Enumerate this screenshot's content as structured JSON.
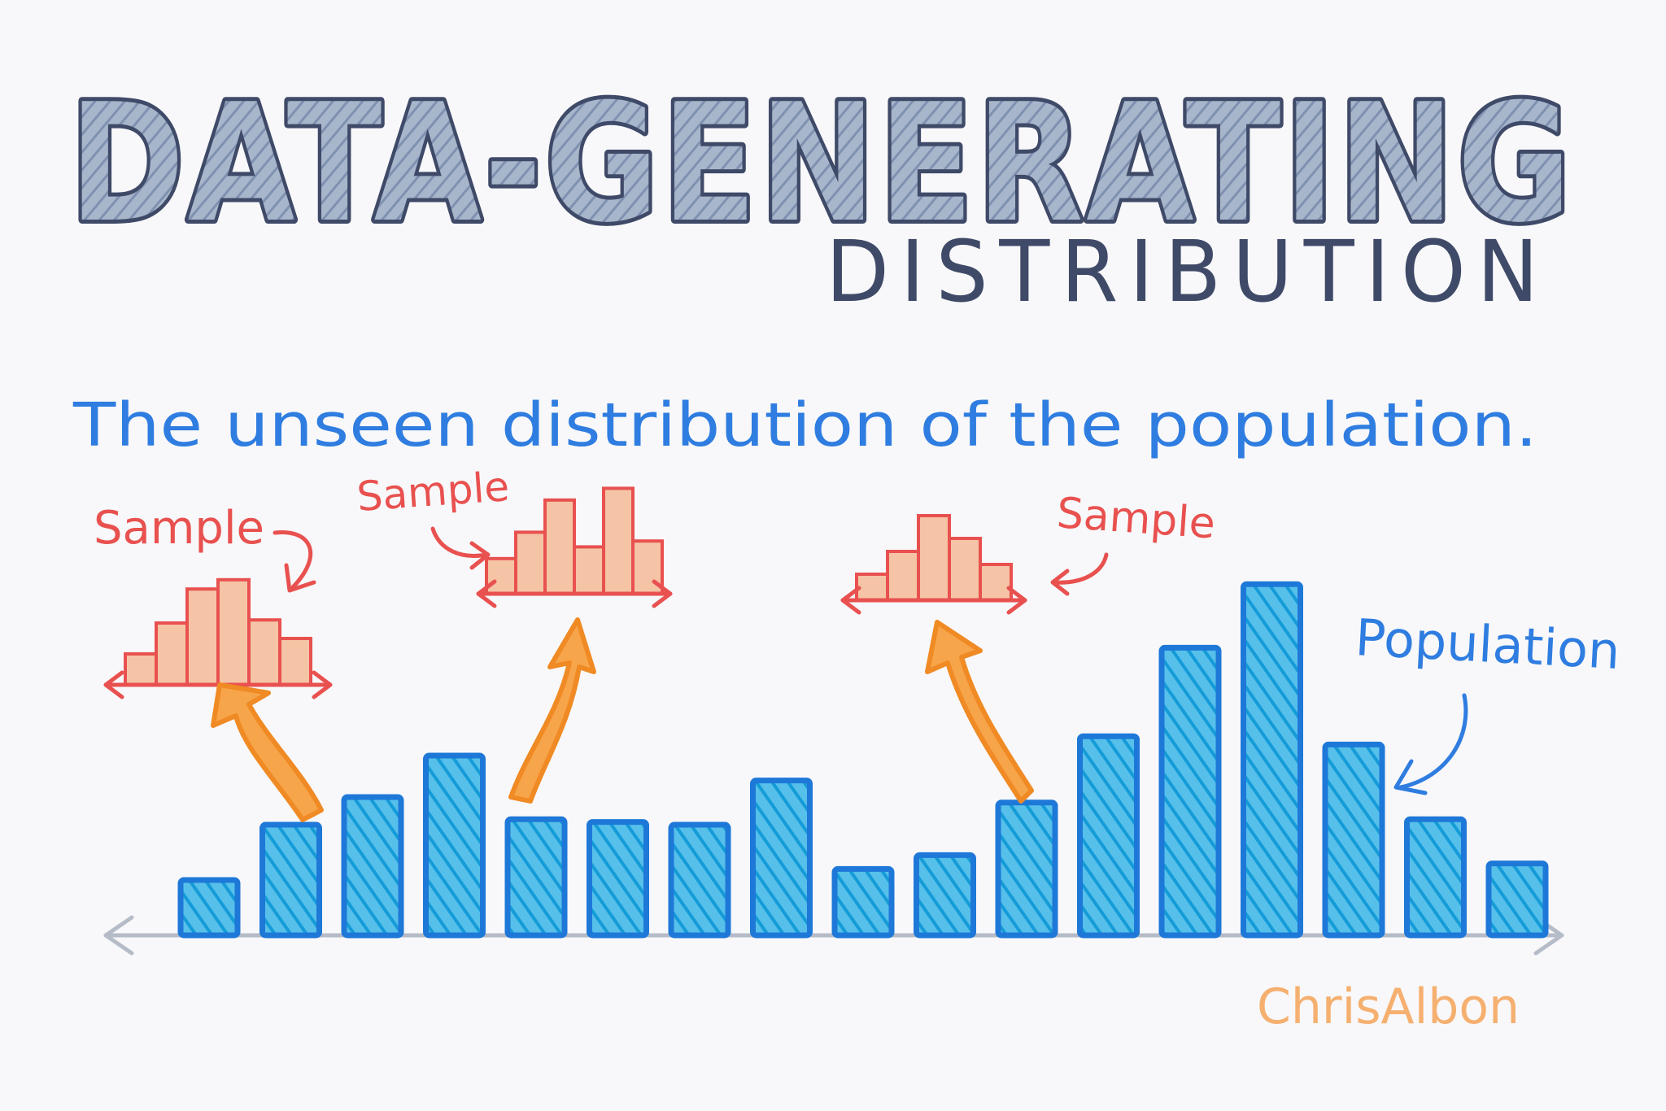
{
  "title": {
    "main": "DATA-GENERATING",
    "sub": "DISTRIBUTION"
  },
  "subtitle": "The unseen  distribution of the population.",
  "labels": {
    "sample_1": "Sample",
    "sample_2": "Sample",
    "sample_3": "Sample",
    "population": "Population",
    "author": "ChrisAlbon"
  },
  "colors": {
    "title_fill": "#9aaac4",
    "title_stroke": "#3f4a68",
    "subtitle": "#2f7de0",
    "population_bar": "#1ea6e0",
    "population_outline": "#1e78d8",
    "sample_fill": "#f5c4a6",
    "sample_outline": "#e8514f",
    "arrow": "#f59a3c",
    "axis": "#b5bcc8",
    "author": "#f5b070"
  },
  "chart_data": {
    "type": "bar",
    "population": {
      "values": [
        2,
        4,
        5,
        6.5,
        4.2,
        4.1,
        4,
        5.6,
        2.4,
        2.9,
        4.8,
        7.2,
        10.4,
        12.7,
        6.9,
        4.2,
        2.6
      ]
    },
    "samples": [
      {
        "values": [
          1,
          2,
          3.1,
          3.4,
          2.1,
          1.5
        ]
      },
      {
        "values": [
          1.2,
          2.1,
          3.2,
          1.6,
          3.6,
          1.8
        ]
      },
      {
        "values": [
          0.8,
          1.5,
          2.6,
          1.9,
          1.1
        ]
      }
    ]
  }
}
